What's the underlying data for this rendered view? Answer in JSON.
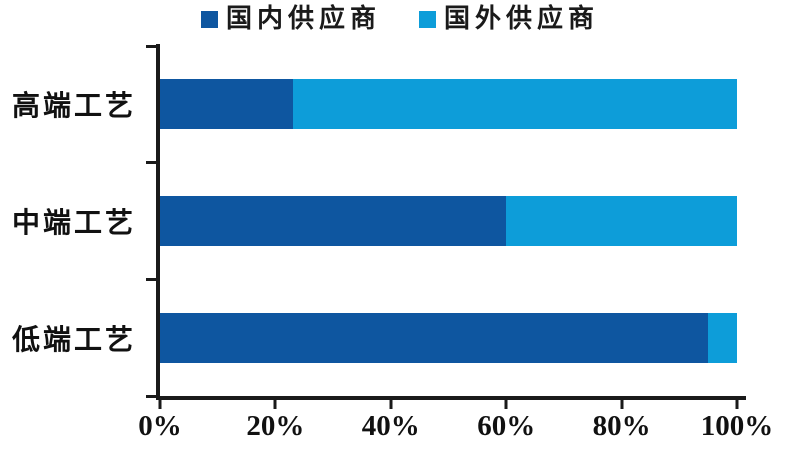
{
  "legend": {
    "items": [
      {
        "label": "国内供应商",
        "color": "#0E56A0"
      },
      {
        "label": "国外供应商",
        "color": "#0D9DD9"
      }
    ]
  },
  "chart_data": {
    "type": "bar",
    "orientation": "horizontal",
    "stacked": true,
    "title": "",
    "xlabel": "",
    "ylabel": "",
    "categories": [
      "高端工艺",
      "中端工艺",
      "低端工艺"
    ],
    "series": [
      {
        "name": "国内供应商",
        "color": "#0E56A0",
        "values": [
          23,
          60,
          95
        ]
      },
      {
        "name": "国外供应商",
        "color": "#0D9DD9",
        "values": [
          77,
          40,
          5
        ]
      }
    ],
    "xlim": [
      0,
      100
    ],
    "x_ticks": [
      "0%",
      "20%",
      "40%",
      "60%",
      "80%",
      "100%"
    ],
    "grid": "off",
    "legend_position": "top",
    "axis_color": "#1a1a1a"
  }
}
